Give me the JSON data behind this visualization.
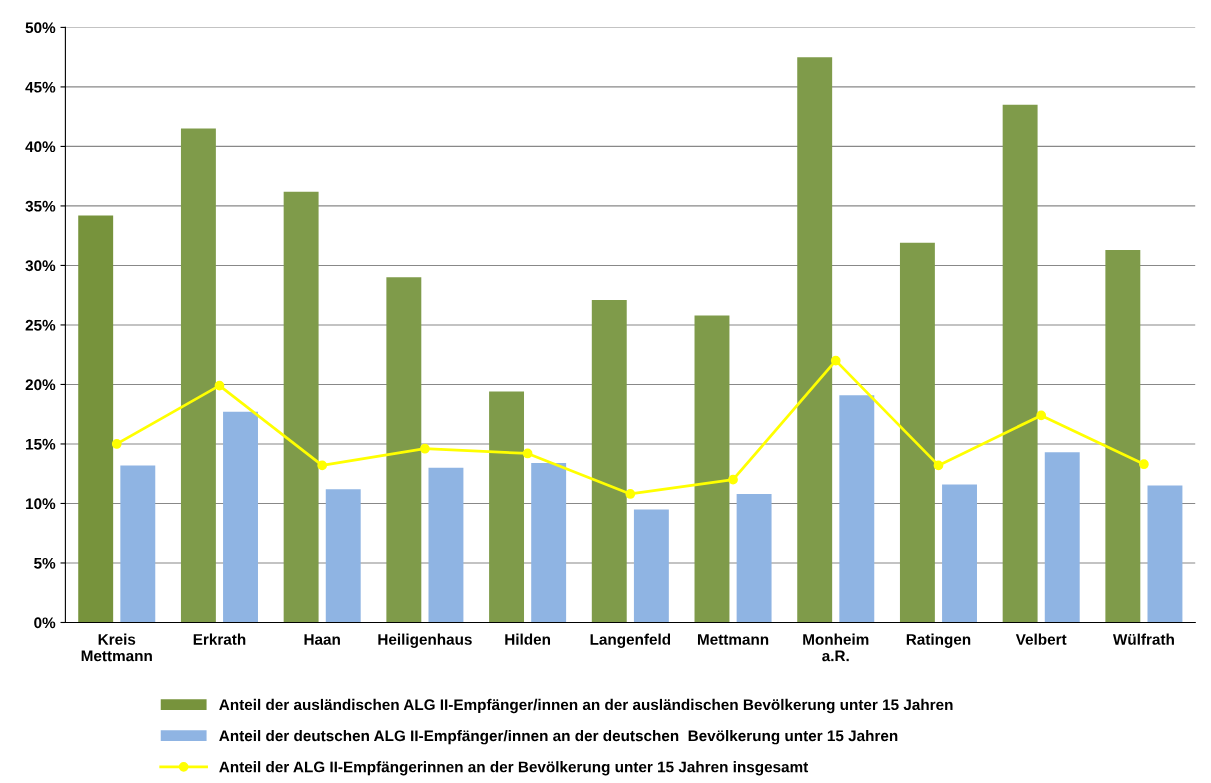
{
  "chart_data": {
    "type": "bar",
    "categories": [
      "Kreis\nMettmann",
      "Erkrath",
      "Haan",
      "Heiligenhaus",
      "Hilden",
      "Langenfeld",
      "Mettmann",
      "Monheim\na.R.",
      "Ratingen",
      "Velbert",
      "Wülfrath"
    ],
    "series": [
      {
        "name": "Anteil der ausländischen ALG II-Empfänger/innen an der ausländischen Bevölkerung unter 15 Jahren",
        "color": "#7f9b4a",
        "colors": [
          "#77933c",
          "#7f9b4a",
          "#7f9b4a",
          "#7f9b4a",
          "#7f9b4a",
          "#7f9b4a",
          "#7f9b4a",
          "#7f9b4a",
          "#7f9b4a",
          "#7f9b4a",
          "#7f9b4a"
        ],
        "values": [
          34.2,
          41.5,
          36.2,
          29.0,
          19.4,
          27.1,
          25.8,
          47.5,
          31.9,
          43.5,
          31.3
        ]
      },
      {
        "name": "Anteil der deutschen ALG II-Empfänger/innen an der deutschen  Bevölkerung unter 15 Jahren",
        "color": "#8fb4e3",
        "values": [
          13.2,
          17.7,
          11.2,
          13.0,
          13.4,
          9.5,
          10.8,
          19.1,
          11.6,
          14.3,
          11.5
        ]
      },
      {
        "name": "Anteil der ALG II-Empfängerinnen an der Bevölkerung unter 15 Jahren insgesamt",
        "type": "line",
        "color": "#ffff00",
        "marker": "circle",
        "values": [
          15.0,
          19.9,
          13.2,
          14.6,
          14.2,
          10.8,
          12.0,
          22.0,
          13.2,
          17.4,
          13.3
        ]
      }
    ],
    "ylim": [
      0,
      50
    ],
    "yticks": [
      {
        "value": 0,
        "label": "0%"
      },
      {
        "value": 5,
        "label": "5%"
      },
      {
        "value": 10,
        "label": "10%"
      },
      {
        "value": 15,
        "label": "15%"
      },
      {
        "value": 20,
        "label": "20%"
      },
      {
        "value": 25,
        "label": "25%"
      },
      {
        "value": 30,
        "label": "30%"
      },
      {
        "value": 35,
        "label": "35%"
      },
      {
        "value": 40,
        "label": "40%"
      },
      {
        "value": 45,
        "label": "45%"
      },
      {
        "value": 50,
        "label": "50%"
      }
    ],
    "grid": "y",
    "legend": "bottom"
  }
}
